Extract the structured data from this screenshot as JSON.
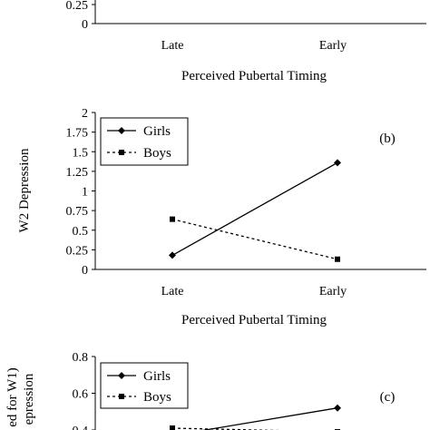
{
  "chart_data": [
    {
      "id": "a",
      "type": "line",
      "categories": [
        "Late",
        "Early"
      ],
      "xlabel": "Perceived Pubertal Timing",
      "ylabel": "",
      "yticks": [
        "0",
        "0.25"
      ],
      "ylim": [
        0,
        0.25
      ],
      "series": []
    },
    {
      "id": "b",
      "type": "line",
      "panel_label": "(b)",
      "categories": [
        "Late",
        "Early"
      ],
      "xlabel": "Perceived Pubertal Timing",
      "ylabel": "W2 Depression",
      "yticks": [
        "0",
        "0.25",
        "0.5",
        "0.75",
        "1",
        "1.25",
        "1.5",
        "1.75",
        "2"
      ],
      "ylim": [
        0,
        2
      ],
      "legend_position": "top-left",
      "series": [
        {
          "name": "Girls",
          "values": [
            0.18,
            1.36
          ],
          "style": "solid",
          "marker": "diamond"
        },
        {
          "name": "Boys",
          "values": [
            0.64,
            0.13
          ],
          "style": "dashed",
          "marker": "square"
        }
      ]
    },
    {
      "id": "c",
      "type": "line",
      "panel_label": "(c)",
      "categories": [
        "Late",
        "Early"
      ],
      "ylabel_lines": [
        "ed for W1)",
        "epression"
      ],
      "yticks": [
        "0.4",
        "0.6",
        "0.8"
      ],
      "ylim": [
        0.4,
        0.8
      ],
      "legend_position": "top-left",
      "series": [
        {
          "name": "Girls",
          "values": [
            0.37,
            0.52
          ],
          "style": "solid",
          "marker": "diamond"
        },
        {
          "name": "Boys",
          "values": [
            0.41,
            0.39
          ],
          "style": "dashed",
          "marker": "square"
        }
      ]
    }
  ]
}
